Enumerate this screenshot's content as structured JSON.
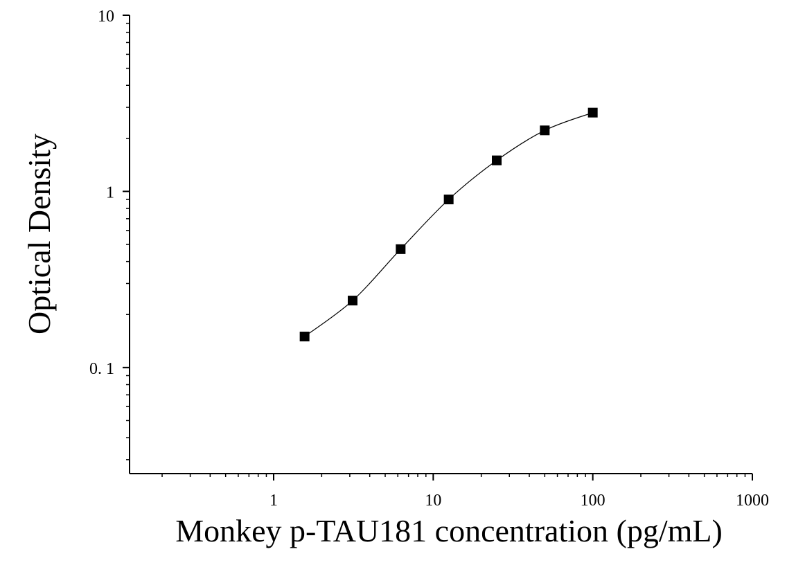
{
  "chart_data": {
    "type": "scatter",
    "x_label": "Monkey p-TAU181 concentration (pg/mL)",
    "y_label": "Optical Density",
    "x": [
      1.5625,
      3.125,
      6.25,
      12.5,
      25,
      50,
      100
    ],
    "series": [
      {
        "color": "#000000",
        "values": [
          0.15,
          0.24,
          0.47,
          0.9,
          1.5,
          2.22,
          2.8
        ]
      }
    ],
    "xlim": [
      0.125,
      1000
    ],
    "ylim": [
      0.025,
      10
    ],
    "log_x": true,
    "log_y": true,
    "xticks": [
      1,
      10,
      100,
      1000
    ],
    "yticks": [
      10,
      1,
      {
        "value": 0.1,
        "label": "0. 1"
      }
    ],
    "xminorticks": [
      0.2,
      0.3,
      0.4,
      0.5,
      0.6,
      0.7,
      0.8,
      0.9,
      2,
      3,
      4,
      5,
      6,
      7,
      8,
      9,
      20,
      30,
      40,
      50,
      60,
      70,
      80,
      90,
      200,
      300,
      400,
      500,
      600,
      700,
      800,
      900
    ],
    "yminorticks": [
      0.03,
      0.04,
      0.05,
      0.06,
      0.07,
      0.08,
      0.09,
      0.2,
      0.3,
      0.4,
      0.5,
      0.6,
      0.7,
      0.8,
      0.9,
      2,
      3,
      4,
      5,
      6,
      7,
      8,
      9
    ],
    "fit_curve": true
  }
}
